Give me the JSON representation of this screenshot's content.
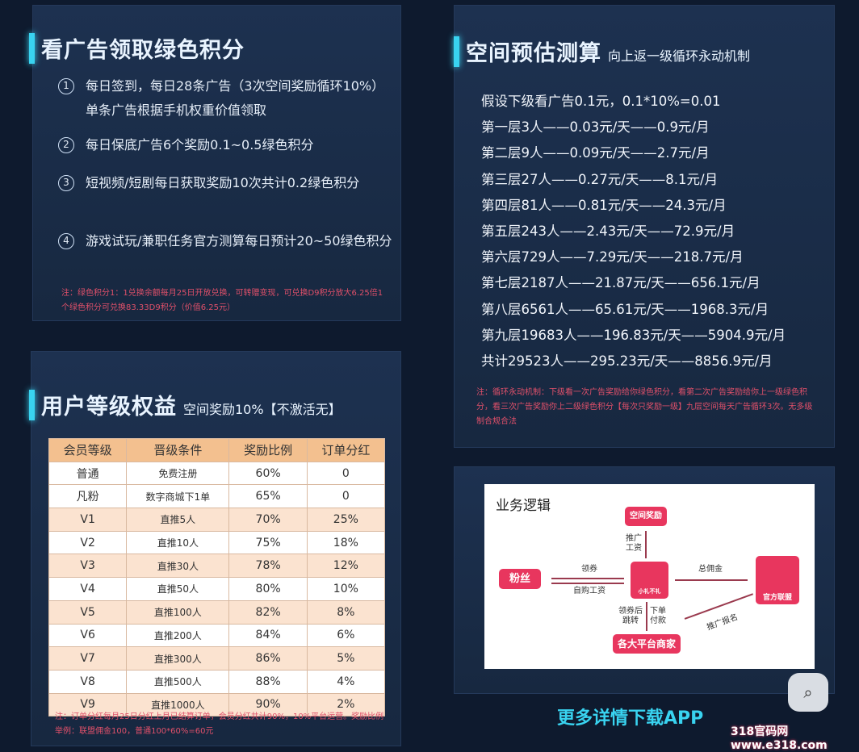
{
  "ads": {
    "title": "看广告领取绿色积分",
    "items": [
      {
        "n": "1",
        "text": "每日签到，每日28条广告（3次空间奖励循环10%）单条广告根据手机权重价值领取"
      },
      {
        "n": "2",
        "text": "每日保底广告6个奖励0.1~0.5绿色积分"
      },
      {
        "n": "3",
        "text": "短视频/短剧每日获取奖励10次共计0.2绿色积分"
      },
      {
        "n": "4",
        "text": "游戏试玩/兼职任务官方测算每日预计20~50绿色积分"
      }
    ],
    "note": "注：绿色积分1：1兑换余额每月25日开放兑换，可转赠变现，可兑换D9积分放大6.25倍1个绿色积分可兑换83.33D9积分（价值6.25元）"
  },
  "levels": {
    "title": "用户等级权益",
    "subtitle": "空间奖励10%【不激活无】",
    "headers": [
      "会员等级",
      "晋级条件",
      "奖励比例",
      "订单分红"
    ],
    "rows": [
      [
        "普通",
        "免费注册",
        "60%",
        "0"
      ],
      [
        "凡粉",
        "数字商城下1单",
        "65%",
        "0"
      ],
      [
        "V1",
        "直推5人",
        "70%",
        "25%"
      ],
      [
        "V2",
        "直推10人",
        "75%",
        "18%"
      ],
      [
        "V3",
        "直推30人",
        "78%",
        "12%"
      ],
      [
        "V4",
        "直推50人",
        "80%",
        "10%"
      ],
      [
        "V5",
        "直推100人",
        "82%",
        "8%"
      ],
      [
        "V6",
        "直推200人",
        "84%",
        "6%"
      ],
      [
        "V7",
        "直推300人",
        "86%",
        "5%"
      ],
      [
        "V8",
        "直推500人",
        "88%",
        "4%"
      ],
      [
        "V9",
        "直推1000人",
        "90%",
        "2%"
      ]
    ],
    "note": "注：订单分红每月25日分红上月已结算订单，会员分红共计90%，10%平台运营。奖励比例举例：联盟佣金100，普通100*60%=60元"
  },
  "space": {
    "title": "空间预估测算",
    "subtitle": "向上返一级循环永动机制",
    "lines": [
      "假设下级看广告0.1元，0.1*10%=0.01",
      "第一层3人——0.03元/天——0.9元/月",
      "第二层9人——0.09元/天——2.7元/月",
      "第三层27人——0.27元/天——8.1元/月",
      "第四层81人——0.81元/天——24.3元/月",
      "第五层243人——2.43元/天——72.9元/月",
      "第六层729人——7.29元/天——218.7元/月",
      "第七层2187人——21.87元/天——656.1元/月",
      "第八层6561人——65.61元/天——1968.3元/月",
      "第九层19683人——196.83元/天——5904.9元/月",
      "共计29523人——295.23元/天——8856.9元/月"
    ],
    "note": "注：循环永动机制：下级看一次广告奖励给你绿色积分，看第二次广告奖励给你上一级绿色积分，看三次广告奖励你上二级绿色积分【每次只奖励一级】九层空间每天广告循环3次。无多级制合规合法"
  },
  "diagram": {
    "title": "业务逻辑",
    "space_reward": "空间奖励",
    "promo_wage": "推广工资",
    "fans": "粉丝",
    "coupon": "领券",
    "self_wage": "自购工资",
    "center_logo": "小礼不礼",
    "commission": "总佣金",
    "alliance": "官方联盟",
    "jump": "领券后跳转",
    "pay": "下单付款",
    "merchants": "各大平台商家",
    "promo_signup": "推广报名"
  },
  "footer": {
    "cta": "更多详情下载APP",
    "watermark": "318官码网 www.e318.com"
  },
  "colors": {
    "accent": "#39d3f0",
    "note": "#e0506a",
    "diagram": "#e8365e"
  }
}
